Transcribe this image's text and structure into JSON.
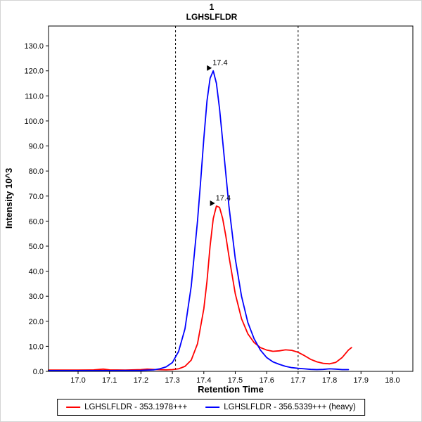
{
  "chart_data": {
    "type": "line",
    "title": "1",
    "subtitle": "LGHSLFLDR",
    "xlabel": "Retention Time",
    "ylabel": "Intensity 10^3",
    "xlim": [
      16.906,
      18.065
    ],
    "ylim": [
      0,
      137.9
    ],
    "x_ticks": [
      17.0,
      17.1,
      17.2,
      17.3,
      17.4,
      17.5,
      17.6,
      17.7,
      17.8,
      17.9,
      18.0
    ],
    "y_ticks": [
      0,
      10,
      20,
      30,
      40,
      50,
      60,
      70,
      80,
      90,
      100,
      110,
      120,
      130
    ],
    "grid": false,
    "legend_position": "bottom",
    "integration_boundaries": [
      17.31,
      17.7
    ],
    "boundary_style": {
      "color": "#000000",
      "dash": "3,3"
    },
    "series": [
      {
        "name": "LGHSLFLDR - 353.1978+++",
        "color": "#FF0000",
        "points": [
          [
            16.906,
            0.5
          ],
          [
            16.95,
            0.5
          ],
          [
            17.0,
            0.5
          ],
          [
            17.05,
            0.6
          ],
          [
            17.08,
            0.9
          ],
          [
            17.1,
            0.6
          ],
          [
            17.15,
            0.5
          ],
          [
            17.2,
            0.7
          ],
          [
            17.22,
            0.9
          ],
          [
            17.25,
            0.7
          ],
          [
            17.28,
            0.6
          ],
          [
            17.3,
            0.7
          ],
          [
            17.32,
            1.0
          ],
          [
            17.34,
            2.0
          ],
          [
            17.36,
            4.5
          ],
          [
            17.38,
            11
          ],
          [
            17.4,
            25
          ],
          [
            17.41,
            36
          ],
          [
            17.42,
            50
          ],
          [
            17.43,
            61
          ],
          [
            17.44,
            66
          ],
          [
            17.45,
            65.5
          ],
          [
            17.46,
            61
          ],
          [
            17.47,
            54
          ],
          [
            17.48,
            46
          ],
          [
            17.5,
            31
          ],
          [
            17.52,
            21
          ],
          [
            17.54,
            15
          ],
          [
            17.56,
            11.5
          ],
          [
            17.58,
            9.5
          ],
          [
            17.6,
            8.5
          ],
          [
            17.62,
            8.0
          ],
          [
            17.64,
            8.2
          ],
          [
            17.66,
            8.6
          ],
          [
            17.68,
            8.4
          ],
          [
            17.7,
            7.6
          ],
          [
            17.72,
            6.3
          ],
          [
            17.74,
            4.8
          ],
          [
            17.76,
            3.8
          ],
          [
            17.78,
            3.2
          ],
          [
            17.8,
            3.0
          ],
          [
            17.82,
            3.6
          ],
          [
            17.84,
            5.5
          ],
          [
            17.86,
            8.5
          ],
          [
            17.87,
            9.5
          ]
        ]
      },
      {
        "name": "LGHSLFLDR - 356.5339+++ (heavy)",
        "color": "#0000FF",
        "points": [
          [
            16.906,
            0.3
          ],
          [
            17.0,
            0.3
          ],
          [
            17.1,
            0.3
          ],
          [
            17.2,
            0.4
          ],
          [
            17.24,
            0.6
          ],
          [
            17.26,
            1.0
          ],
          [
            17.28,
            1.8
          ],
          [
            17.3,
            3.5
          ],
          [
            17.32,
            8
          ],
          [
            17.34,
            17
          ],
          [
            17.36,
            34
          ],
          [
            17.38,
            60
          ],
          [
            17.39,
            76
          ],
          [
            17.4,
            93
          ],
          [
            17.41,
            108
          ],
          [
            17.42,
            117
          ],
          [
            17.43,
            120
          ],
          [
            17.44,
            115
          ],
          [
            17.45,
            105
          ],
          [
            17.46,
            92
          ],
          [
            17.48,
            66
          ],
          [
            17.5,
            45
          ],
          [
            17.52,
            30
          ],
          [
            17.54,
            19.5
          ],
          [
            17.56,
            13
          ],
          [
            17.58,
            8.5
          ],
          [
            17.6,
            5.5
          ],
          [
            17.62,
            3.8
          ],
          [
            17.64,
            2.8
          ],
          [
            17.66,
            2.0
          ],
          [
            17.68,
            1.5
          ],
          [
            17.7,
            1.2
          ],
          [
            17.72,
            1.0
          ],
          [
            17.74,
            0.8
          ],
          [
            17.76,
            0.7
          ],
          [
            17.78,
            0.8
          ],
          [
            17.8,
            1.0
          ],
          [
            17.82,
            0.9
          ],
          [
            17.84,
            0.7
          ],
          [
            17.86,
            0.7
          ]
        ]
      }
    ],
    "annotations": [
      {
        "label": "17.4",
        "x": 17.43,
        "y": 120,
        "color": "#0000FF"
      },
      {
        "label": "17.4",
        "x": 17.44,
        "y": 66,
        "color": "#FF0000"
      }
    ]
  }
}
